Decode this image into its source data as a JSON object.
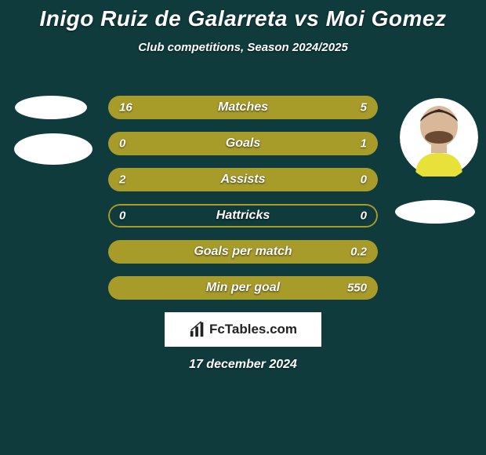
{
  "background_color": "#0f3b3d",
  "text_color": "#ffffff",
  "title": {
    "text": "Inigo Ruiz de Galarreta vs Moi Gomez",
    "fontsize": 28,
    "color": "#ffffff"
  },
  "subtitle": {
    "text": "Club competitions, Season 2024/2025",
    "fontsize": 15,
    "color": "#ffffff"
  },
  "player_left": {
    "name": "Inigo Ruiz de Galarreta"
  },
  "player_right": {
    "name": "Moi Gomez"
  },
  "bar_style": {
    "height": 30,
    "gap": 16,
    "primary_color": "#a79b2a",
    "border_color": "#a79b2a",
    "label_fontsize": 16,
    "value_fontsize": 15,
    "label_color": "#ffffff",
    "value_color": "#ffffff"
  },
  "bars": [
    {
      "label": "Matches",
      "left": "16",
      "right": "5",
      "left_pct": 76,
      "right_pct": 24
    },
    {
      "label": "Goals",
      "left": "0",
      "right": "1",
      "left_pct": 0,
      "right_pct": 100
    },
    {
      "label": "Assists",
      "left": "2",
      "right": "0",
      "left_pct": 100,
      "right_pct": 0
    },
    {
      "label": "Hattricks",
      "left": "0",
      "right": "0",
      "left_pct": 0,
      "right_pct": 0
    },
    {
      "label": "Goals per match",
      "left": "",
      "right": "0.2",
      "left_pct": 0,
      "right_pct": 100
    },
    {
      "label": "Min per goal",
      "left": "",
      "right": "550",
      "left_pct": 0,
      "right_pct": 100
    }
  ],
  "logo": {
    "text": "FcTables.com",
    "icon": "bars-icon"
  },
  "date": {
    "text": "17 december 2024",
    "fontsize": 16
  }
}
